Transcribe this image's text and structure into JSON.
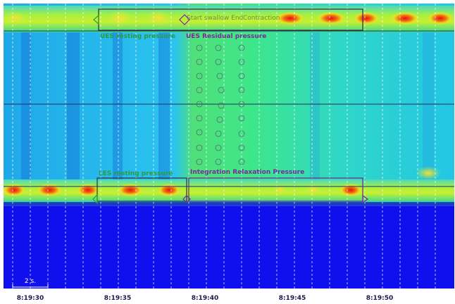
{
  "annotations": {
    "swallow_marker": "Start swallow End",
    "contraction": "Contraction",
    "ues_resting": "UES resting pressure",
    "ues_residual": "UES Residual pressure",
    "les_resting": "LES resting pressure",
    "irp": "Integration Relaxation Pressure"
  },
  "scale_bar": "2 s.",
  "time_axis": [
    "8:19:30",
    "8:19:35",
    "8:19:40",
    "8:19:45",
    "8:19:50"
  ]
}
